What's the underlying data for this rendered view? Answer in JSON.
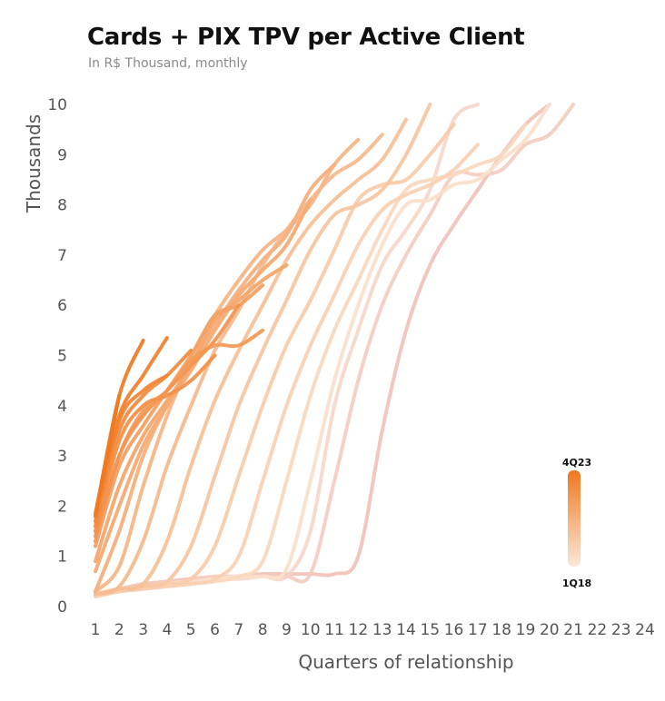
{
  "chart_data": {
    "type": "line",
    "title": "Cards + PIX TPV per Active Client",
    "subtitle": "In R$ Thousand, monthly",
    "xlabel": "Quarters of relationship",
    "ylabel": "Thousands",
    "xlim": [
      1,
      24
    ],
    "ylim": [
      0,
      10
    ],
    "x_ticks": [
      "1",
      "2",
      "3",
      "4",
      "5",
      "6",
      "7",
      "8",
      "9",
      "10",
      "11",
      "12",
      "13",
      "14",
      "15",
      "16",
      "17",
      "18",
      "19",
      "20",
      "21",
      "22",
      "23",
      "24"
    ],
    "y_ticks": [
      "0",
      "1",
      "2",
      "3",
      "4",
      "5",
      "6",
      "7",
      "8",
      "9",
      "10"
    ],
    "grid": false,
    "legend": {
      "type": "color-gradient",
      "top_label": "4Q23",
      "bottom_label": "1Q18",
      "position": "right"
    },
    "colors": {
      "newest": "#f07820",
      "oldest": "#fae0cc",
      "oldest_alt": "#efbdb3"
    },
    "series": [
      {
        "cohort": 1,
        "values": [
          0.25,
          0.35,
          0.45,
          0.5,
          0.55,
          0.55,
          0.6,
          0.65,
          0.65,
          0.65,
          0.65,
          1.0,
          3.5,
          5.5,
          6.8,
          7.6,
          8.3,
          9.0,
          9.6,
          10.0
        ]
      },
      {
        "cohort": 2,
        "values": [
          0.25,
          0.35,
          0.45,
          0.5,
          0.55,
          0.6,
          0.6,
          0.6,
          0.6,
          0.65,
          2.5,
          4.5,
          6.0,
          7.0,
          7.8,
          8.6,
          8.6,
          8.7,
          9.2,
          9.4,
          10.0
        ]
      },
      {
        "cohort": 3,
        "values": [
          0.25,
          0.3,
          0.4,
          0.45,
          0.5,
          0.55,
          0.55,
          0.6,
          0.6,
          1.5,
          4.0,
          5.5,
          6.8,
          7.5,
          8.3,
          9.7,
          10.0
        ]
      },
      {
        "cohort": 4,
        "values": [
          0.2,
          0.3,
          0.35,
          0.45,
          0.5,
          0.55,
          0.6,
          0.6,
          0.75,
          2.5,
          4.5,
          6.0,
          7.2,
          8.0,
          8.1,
          8.4,
          8.5,
          8.9,
          9.3,
          10.0
        ]
      },
      {
        "cohort": 5,
        "values": [
          0.2,
          0.3,
          0.35,
          0.4,
          0.45,
          0.5,
          0.6,
          0.9,
          2.5,
          4.2,
          5.5,
          6.5,
          7.5,
          8.3,
          8.5,
          8.6,
          8.8,
          9.0,
          9.6
        ]
      },
      {
        "cohort": 6,
        "values": [
          0.2,
          0.3,
          0.35,
          0.4,
          0.45,
          0.55,
          1.0,
          2.5,
          4.0,
          5.2,
          6.2,
          7.2,
          7.9,
          8.2,
          8.4,
          8.7,
          9.2
        ]
      },
      {
        "cohort": 7,
        "values": [
          0.25,
          0.3,
          0.4,
          0.45,
          0.55,
          1.2,
          2.6,
          4.0,
          5.2,
          6.1,
          7.1,
          8.1,
          8.4,
          8.5,
          9.0,
          9.6
        ]
      },
      {
        "cohort": 8,
        "values": [
          0.25,
          0.35,
          0.4,
          0.5,
          1.2,
          2.6,
          4.0,
          5.1,
          6.1,
          7.1,
          7.8,
          8.0,
          8.3,
          9.0,
          10.0
        ]
      },
      {
        "cohort": 9,
        "values": [
          0.25,
          0.35,
          0.45,
          1.3,
          2.8,
          4.1,
          5.1,
          6.0,
          6.9,
          7.6,
          8.1,
          8.5,
          8.9,
          9.7
        ]
      },
      {
        "cohort": 10,
        "values": [
          0.25,
          0.4,
          1.3,
          2.8,
          4.0,
          5.1,
          5.9,
          6.8,
          7.5,
          8.1,
          8.6,
          8.9,
          9.4
        ]
      },
      {
        "cohort": 11,
        "values": [
          0.3,
          0.8,
          2.4,
          3.8,
          4.9,
          5.8,
          6.5,
          7.1,
          7.5,
          8.0,
          8.8,
          9.3
        ]
      },
      {
        "cohort": 12,
        "values": [
          0.3,
          1.5,
          3.0,
          4.0,
          4.8,
          5.6,
          6.3,
          6.9,
          7.4,
          8.3,
          8.8
        ]
      },
      {
        "cohort": 13,
        "values": [
          0.7,
          2.0,
          3.2,
          4.0,
          4.7,
          5.5,
          6.2,
          6.7,
          7.2,
          8.1
        ]
      },
      {
        "cohort": 14,
        "values": [
          0.9,
          2.4,
          3.4,
          4.1,
          4.8,
          5.7,
          6.1,
          6.5,
          6.8
        ]
      },
      {
        "cohort": 15,
        "values": [
          1.2,
          2.8,
          3.6,
          4.3,
          5.0,
          5.8,
          6.0,
          6.4
        ]
      },
      {
        "cohort": 16,
        "values": [
          1.3,
          3.0,
          3.9,
          4.3,
          4.9,
          5.2,
          5.2,
          5.5
        ]
      },
      {
        "cohort": 17,
        "values": [
          1.4,
          3.0,
          3.8,
          4.3,
          4.8,
          5.3,
          6.0
        ]
      },
      {
        "cohort": 18,
        "values": [
          1.5,
          3.3,
          4.0,
          4.2,
          4.5,
          5.0
        ]
      },
      {
        "cohort": 19,
        "values": [
          1.6,
          3.5,
          4.2,
          4.6,
          5.1
        ]
      },
      {
        "cohort": 20,
        "values": [
          1.7,
          3.7,
          4.3,
          4.6
        ]
      },
      {
        "cohort": 21,
        "values": [
          1.8,
          3.8,
          4.6,
          5.35
        ]
      },
      {
        "cohort": 22,
        "values": [
          1.8,
          4.2,
          5.3
        ]
      },
      {
        "cohort": 23,
        "values": [
          1.85,
          4.2
        ]
      }
    ]
  }
}
